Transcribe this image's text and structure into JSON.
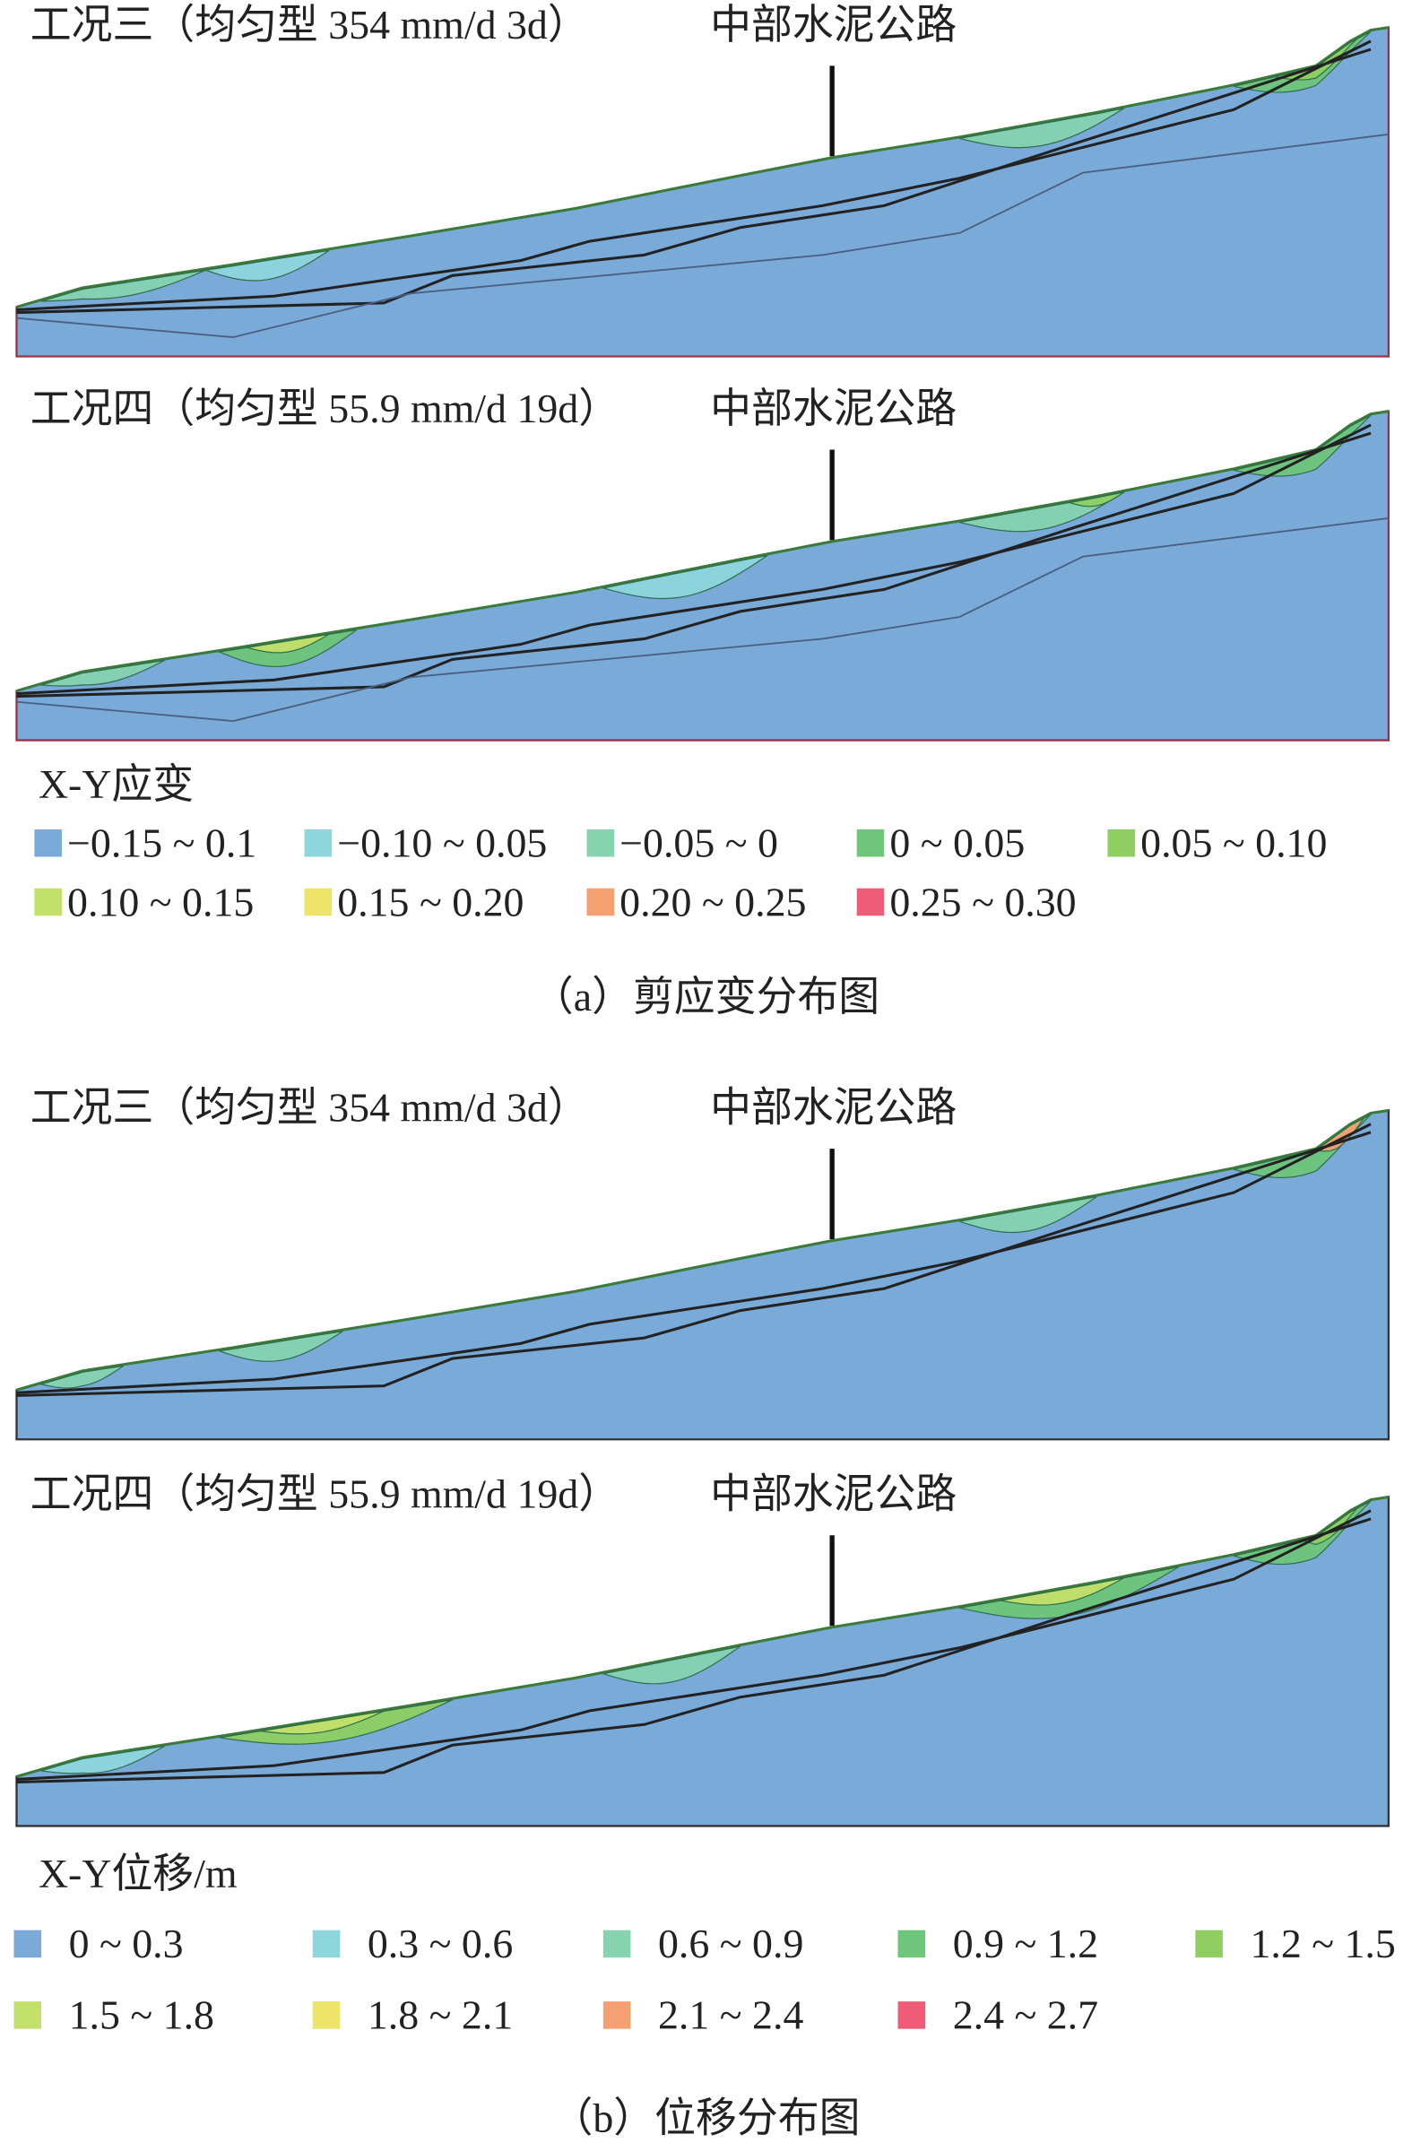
{
  "sections": [
    {
      "panels": [
        {
          "title": "工况三（均匀型 354 mm/d 3d）",
          "label": "中部水泥公路"
        },
        {
          "title": "工况四（均匀型 55.9 mm/d 19d）",
          "label": "中部水泥公路"
        }
      ],
      "legend": {
        "title": "X-Y应变",
        "items": [
          {
            "label": "−0.15 ~ 0.1",
            "color": "#7aaad8"
          },
          {
            "label": "−0.10 ~ 0.05",
            "color": "#8dd6dc"
          },
          {
            "label": "−0.05 ~ 0",
            "color": "#86d3b0"
          },
          {
            "label": "0 ~ 0.05",
            "color": "#6ec67a"
          },
          {
            "label": "0.05 ~ 0.10",
            "color": "#8fcf62"
          },
          {
            "label": "0.10 ~ 0.15",
            "color": "#c3e06a"
          },
          {
            "label": "0.15 ~ 0.20",
            "color": "#eee46a"
          },
          {
            "label": "0.20 ~ 0.25",
            "color": "#f5a070"
          },
          {
            "label": "0.25 ~ 0.30",
            "color": "#ef5c78"
          }
        ]
      },
      "caption": "（a）剪应变分布图"
    },
    {
      "panels": [
        {
          "title": "工况三（均匀型 354 mm/d 3d）",
          "label": "中部水泥公路"
        },
        {
          "title": "工况四（均匀型 55.9 mm/d 19d）",
          "label": "中部水泥公路"
        }
      ],
      "legend": {
        "title": "X-Y位移/m",
        "items": [
          {
            "label": "0 ~ 0.3",
            "color": "#7aaad8"
          },
          {
            "label": "0.3 ~ 0.6",
            "color": "#8dd6dc"
          },
          {
            "label": "0.6 ~ 0.9",
            "color": "#86d3b0"
          },
          {
            "label": "0.9 ~ 1.2",
            "color": "#6ec67a"
          },
          {
            "label": "1.2 ~ 1.5",
            "color": "#8fcf62"
          },
          {
            "label": "1.5 ~ 1.8",
            "color": "#c3e06a"
          },
          {
            "label": "1.8 ~ 2.1",
            "color": "#eee46a"
          },
          {
            "label": "2.1 ~ 2.4",
            "color": "#f5a070"
          },
          {
            "label": "2.4 ~ 2.7",
            "color": "#ef5c78"
          }
        ]
      },
      "caption": "（b）位移分布图"
    }
  ]
}
